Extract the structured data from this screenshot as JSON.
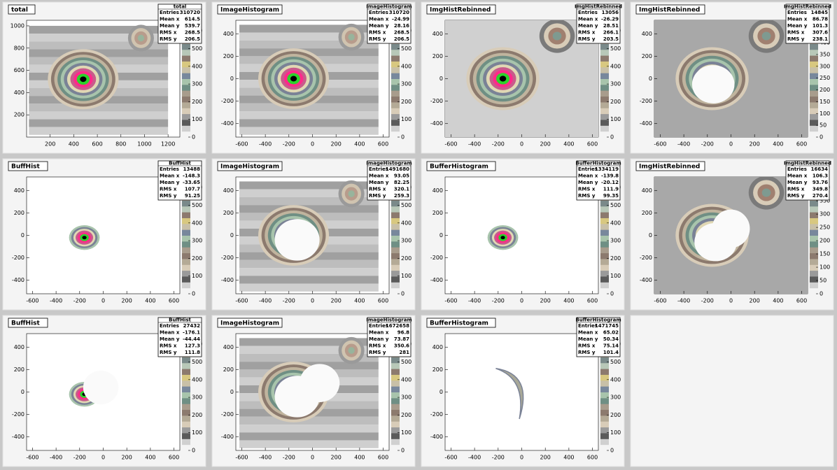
{
  "panels": [
    {
      "title": "total",
      "stats": [
        [
          "Entries",
          "310720"
        ],
        [
          "Mean x",
          "614.5"
        ],
        [
          "Mean y",
          "539.7"
        ],
        [
          "RMS x",
          "268.5"
        ],
        [
          "RMS y",
          "206.5"
        ]
      ],
      "xlim": [
        0,
        1300
      ],
      "ylim": [
        0,
        1050
      ],
      "xticks": [
        200,
        400,
        600,
        800,
        1000,
        1200
      ],
      "yticks": [
        200,
        400,
        600,
        800,
        1000
      ],
      "zticks": [
        0,
        100,
        200,
        300,
        400,
        500,
        600
      ]
    },
    {
      "title": "ImageHistogram",
      "stats": [
        [
          "Entries",
          "310720"
        ],
        [
          "Mean x",
          "-24.99"
        ],
        [
          "Mean y",
          "28.16"
        ],
        [
          "RMS x",
          "268.5"
        ],
        [
          "RMS y",
          "206.5"
        ]
      ],
      "xlim": [
        -650,
        650
      ],
      "ylim": [
        -520,
        520
      ],
      "xticks": [
        -600,
        -400,
        -200,
        0,
        200,
        400,
        600
      ],
      "yticks": [
        -400,
        -200,
        0,
        200,
        400
      ],
      "zticks": [
        0,
        100,
        200,
        300,
        400,
        500,
        600
      ]
    },
    {
      "title": "ImgHistRebinned",
      "stats": [
        [
          "Entries",
          "13056"
        ],
        [
          "Mean x",
          "-26.29"
        ],
        [
          "Mean y",
          "28.51"
        ],
        [
          "RMS x",
          "266.1"
        ],
        [
          "RMS y",
          "203.5"
        ]
      ],
      "xlim": [
        -650,
        650
      ],
      "ylim": [
        -520,
        520
      ],
      "xticks": [
        -600,
        -400,
        -200,
        0,
        200,
        400,
        600
      ],
      "yticks": [
        -400,
        -200,
        0,
        200,
        400
      ],
      "zticks": [
        0,
        100,
        200,
        300,
        400,
        500,
        600
      ]
    },
    {
      "title": "ImgHistRebinned",
      "stats": [
        [
          "Entries",
          "14845"
        ],
        [
          "Mean x",
          "86.78"
        ],
        [
          "Mean y",
          "101.3"
        ],
        [
          "RMS x",
          "307.6"
        ],
        [
          "RMS y",
          "238.1"
        ]
      ],
      "xlim": [
        -650,
        650
      ],
      "ylim": [
        -520,
        520
      ],
      "xticks": [
        -600,
        -400,
        -200,
        0,
        200,
        400,
        600
      ],
      "yticks": [
        -400,
        -200,
        0,
        200,
        400
      ],
      "zticks": [
        0,
        50,
        100,
        150,
        200,
        250,
        300,
        350,
        400,
        450
      ]
    },
    {
      "title": "BuffHist",
      "stats": [
        [
          "Entries",
          "13488"
        ],
        [
          "Mean x",
          "-148.3"
        ],
        [
          "Mean y",
          "-33.65"
        ],
        [
          "RMS x",
          "107.7"
        ],
        [
          "RMS y",
          "91.25"
        ]
      ],
      "xlim": [
        -650,
        650
      ],
      "ylim": [
        -520,
        520
      ],
      "xticks": [
        -600,
        -400,
        -200,
        0,
        200,
        400,
        600
      ],
      "yticks": [
        -400,
        -200,
        0,
        200,
        400
      ],
      "zticks": [
        0,
        100,
        200,
        300,
        400,
        500,
        600
      ]
    },
    {
      "title": "ImageHistogram",
      "stats": [
        [
          "Entries",
          "1491680"
        ],
        [
          "Mean x",
          "93.05"
        ],
        [
          "Mean y",
          "82.25"
        ],
        [
          "RMS x",
          "320.1"
        ],
        [
          "RMS y",
          "259.3"
        ]
      ],
      "xlim": [
        -650,
        650
      ],
      "ylim": [
        -520,
        520
      ],
      "xticks": [
        -600,
        -400,
        -200,
        0,
        200,
        400,
        600
      ],
      "yticks": [
        -400,
        -200,
        0,
        200,
        400
      ],
      "zticks": [
        0,
        100,
        200,
        300,
        400,
        500,
        600
      ]
    },
    {
      "title": "BufferHistogram",
      "stats": [
        [
          "Entries",
          "1334119"
        ],
        [
          "Mean x",
          "-139.8"
        ],
        [
          "Mean y",
          "-20.12"
        ],
        [
          "RMS x",
          "111.9"
        ],
        [
          "RMS y",
          "99.35"
        ]
      ],
      "xlim": [
        -650,
        650
      ],
      "ylim": [
        -520,
        520
      ],
      "xticks": [
        -600,
        -400,
        -200,
        0,
        200,
        400,
        600
      ],
      "yticks": [
        -400,
        -200,
        0,
        200,
        400
      ],
      "zticks": [
        0,
        100,
        200,
        300,
        400,
        500,
        600
      ]
    },
    {
      "title": "ImgHistRebinned",
      "stats": [
        [
          "Entries",
          "16634"
        ],
        [
          "Mean x",
          "106.3"
        ],
        [
          "Mean y",
          "93.76"
        ],
        [
          "RMS x",
          "349.8"
        ],
        [
          "RMS y",
          "270.4"
        ]
      ],
      "xlim": [
        -650,
        650
      ],
      "ylim": [
        -520,
        520
      ],
      "xticks": [
        -600,
        -400,
        -200,
        0,
        200,
        400,
        600
      ],
      "yticks": [
        -400,
        -200,
        0,
        200,
        400
      ],
      "zticks": [
        0,
        50,
        100,
        150,
        200,
        250,
        300,
        350,
        400
      ]
    },
    {
      "title": "BuffHist",
      "stats": [
        [
          "Entries",
          "27432"
        ],
        [
          "Mean x",
          "-176.1"
        ],
        [
          "Mean y",
          "-44.44"
        ],
        [
          "RMS x",
          "127.3"
        ],
        [
          "RMS y",
          "111.8"
        ]
      ],
      "xlim": [
        -650,
        650
      ],
      "ylim": [
        -520,
        520
      ],
      "xticks": [
        -600,
        -400,
        -200,
        0,
        200,
        400,
        600
      ],
      "yticks": [
        -400,
        -200,
        0,
        200,
        400
      ],
      "zticks": [
        0,
        100,
        200,
        300,
        400,
        500,
        600
      ]
    },
    {
      "title": "ImageHistogram",
      "stats": [
        [
          "Entries",
          "1672658"
        ],
        [
          "Mean x",
          "96.8"
        ],
        [
          "Mean y",
          "73.87"
        ],
        [
          "RMS x",
          "350.6"
        ],
        [
          "RMS y",
          "281"
        ]
      ],
      "xlim": [
        -650,
        650
      ],
      "ylim": [
        -520,
        520
      ],
      "xticks": [
        -600,
        -400,
        -200,
        0,
        200,
        400,
        600
      ],
      "yticks": [
        -400,
        -200,
        0,
        200,
        400
      ],
      "zticks": [
        0,
        100,
        200,
        300,
        400,
        500,
        600
      ]
    },
    {
      "title": "BufferHistogram",
      "stats": [
        [
          "Entries",
          "1471745"
        ],
        [
          "Mean x",
          "65.02"
        ],
        [
          "Mean y",
          "50.34"
        ],
        [
          "RMS x",
          "75.14"
        ],
        [
          "RMS y",
          "101.4"
        ]
      ],
      "xlim": [
        -650,
        650
      ],
      "ylim": [
        -520,
        520
      ],
      "xticks": [
        -600,
        -400,
        -200,
        0,
        200,
        400,
        600
      ],
      "yticks": [
        -400,
        -200,
        0,
        200,
        400
      ],
      "zticks": [
        0,
        100,
        200,
        300,
        400,
        500,
        600
      ]
    }
  ]
}
